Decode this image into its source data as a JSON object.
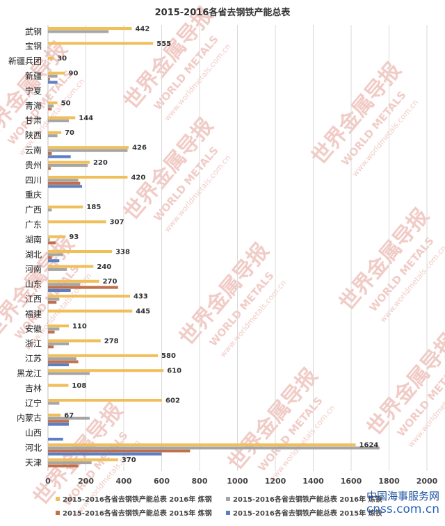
{
  "chart_data": {
    "type": "bar",
    "orientation": "horizontal",
    "title": "2015-2016各省去钢铁产能总表",
    "categories": [
      "武钢",
      "宝钢",
      "新疆兵团",
      "新疆",
      "宁夏",
      "青海",
      "甘肃",
      "陕西",
      "云南",
      "贵州",
      "四川",
      "重庆",
      "广西",
      "广东",
      "湖南",
      "湖北",
      "河南",
      "山东",
      "江西",
      "福建",
      "安徽",
      "浙江",
      "江苏",
      "黑龙江",
      "吉林",
      "辽宁",
      "内蒙古",
      "山西",
      "河北",
      "天津"
    ],
    "series": [
      {
        "name": "2015-2016各省去钢铁产能总表 2016年 炼钢",
        "color": "#f0bf5b",
        "values": [
          442,
          555,
          30,
          90,
          0,
          50,
          144,
          70,
          426,
          220,
          420,
          0,
          185,
          307,
          93,
          338,
          240,
          270,
          433,
          445,
          110,
          278,
          580,
          610,
          108,
          602,
          67,
          0,
          1624,
          370
        ]
      },
      {
        "name": "2015-2016各省去钢铁产能总表 2016年 炼铁",
        "color": "#a5a5a5",
        "values": [
          320,
          0,
          0,
          50,
          0,
          30,
          110,
          50,
          420,
          210,
          160,
          0,
          20,
          0,
          10,
          80,
          100,
          170,
          60,
          0,
          60,
          110,
          150,
          220,
          0,
          60,
          220,
          0,
          1750,
          230
        ]
      },
      {
        "name": "2015-2016各省去钢铁产能总表 2015年 炼钢",
        "color": "#c0704b",
        "values": [
          0,
          0,
          0,
          10,
          0,
          20,
          0,
          0,
          20,
          15,
          170,
          0,
          0,
          0,
          40,
          20,
          0,
          370,
          45,
          0,
          35,
          30,
          160,
          0,
          0,
          0,
          110,
          0,
          750,
          160
        ]
      },
      {
        "name": "2015-2016各省去钢铁产能总表 2015年 炼铁",
        "color": "#5b7fc5",
        "values": [
          0,
          0,
          0,
          50,
          0,
          0,
          0,
          0,
          120,
          0,
          180,
          0,
          0,
          0,
          0,
          60,
          0,
          120,
          0,
          0,
          0,
          0,
          110,
          0,
          0,
          0,
          110,
          80,
          600,
          0
        ]
      }
    ],
    "xlim": [
      0,
      2000
    ],
    "xticks": [
      0,
      200,
      400,
      600,
      800,
      1000,
      1200,
      1400,
      1600,
      1800,
      2000
    ],
    "data_labels_series": 0,
    "data_labels": [
      "442",
      "555",
      "30",
      "90",
      "",
      "50",
      "144",
      "70",
      "426",
      "220",
      "420",
      "",
      "185",
      "307",
      "93",
      "338",
      "240",
      "270",
      "433",
      "445",
      "110",
      "278",
      "580",
      "610",
      "108",
      "602",
      "67",
      "",
      "1624",
      "370"
    ],
    "grid": true,
    "legend": "bottom",
    "legend_entries": [
      "2015-2016各省去钢铁产能总表 2016年 炼钢",
      "2015-2016各省去钢铁产能总表 2016年 炼铁",
      "2015-2016各省去钢铁产能总表 2015年 炼钢",
      "2015-2016各省去钢铁产能总表 2015年 炼铁"
    ]
  },
  "watermark": {
    "text_cn": "世界金属导报",
    "text_en": "WORLD METALS",
    "url": "www.worldmetals.com.cn",
    "color": "#e7a39a"
  },
  "badge": {
    "line1": "中国海事服务网",
    "line2": "cnss.com.cn"
  }
}
